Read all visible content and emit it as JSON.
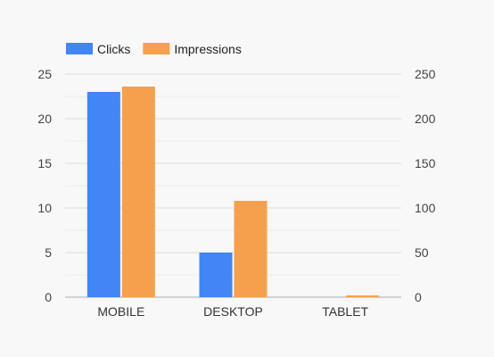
{
  "chart_data": {
    "type": "bar",
    "categories": [
      "MOBILE",
      "DESKTOP",
      "TABLET"
    ],
    "series": [
      {
        "name": "Clicks",
        "axis": "left",
        "values": [
          23,
          5,
          0
        ],
        "color": "#4285f4"
      },
      {
        "name": "Impressions",
        "axis": "right",
        "values": [
          236,
          108,
          2
        ],
        "color": "#f6a04d"
      }
    ],
    "y_left": {
      "min": 0,
      "max": 25,
      "ticks": [
        0,
        5,
        10,
        15,
        20,
        25
      ]
    },
    "y_right": {
      "min": 0,
      "max": 250,
      "ticks": [
        0,
        50,
        100,
        150,
        200,
        250
      ]
    },
    "legend_position": "top-left",
    "grid": true
  }
}
